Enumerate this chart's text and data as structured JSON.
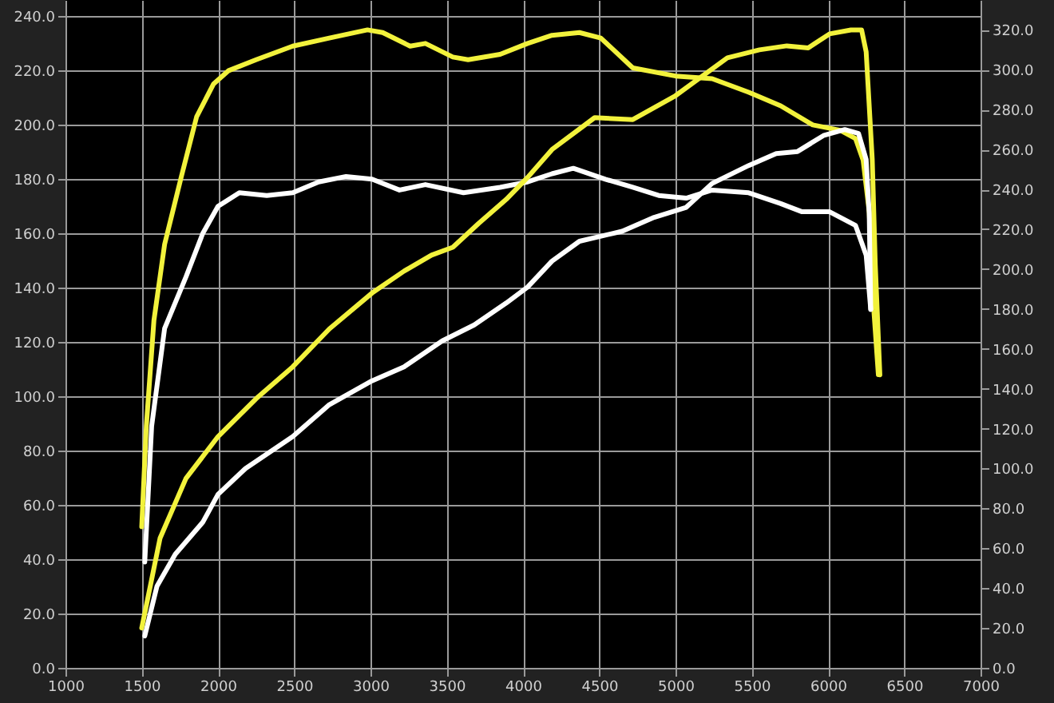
{
  "chart_data": {
    "type": "line",
    "xlim": [
      1000,
      7000
    ],
    "xticks": [
      1000,
      1500,
      2000,
      2500,
      3000,
      3500,
      4000,
      4500,
      5000,
      5500,
      6000,
      6500,
      7000
    ],
    "ylim": [
      0,
      246
    ],
    "yticks": [
      {
        "value": 0,
        "label": "0.0"
      },
      {
        "value": 20,
        "label": "20.0"
      },
      {
        "value": 40,
        "label": "40.0"
      },
      {
        "value": 60,
        "label": "60.0"
      },
      {
        "value": 80,
        "label": "80.0"
      },
      {
        "value": 100,
        "label": "100.0"
      },
      {
        "value": 120,
        "label": "120.0"
      },
      {
        "value": 140,
        "label": "140.0"
      },
      {
        "value": 160,
        "label": "160.0"
      },
      {
        "value": 180,
        "label": "180.0"
      },
      {
        "value": 200,
        "label": "200.0"
      },
      {
        "value": 220,
        "label": "220.0"
      },
      {
        "value": 240,
        "label": "240.0"
      }
    ],
    "y2lim": [
      0,
      335
    ],
    "y2ticks": [
      {
        "value": 0,
        "label": "0.0"
      },
      {
        "value": 20,
        "label": "20.0"
      },
      {
        "value": 40,
        "label": "40.0"
      },
      {
        "value": 60,
        "label": "60.0"
      },
      {
        "value": 80,
        "label": "80.0"
      },
      {
        "value": 100,
        "label": "100.0"
      },
      {
        "value": 120,
        "label": "120.0"
      },
      {
        "value": 140,
        "label": "140.0"
      },
      {
        "value": 160,
        "label": "160.0"
      },
      {
        "value": 180,
        "label": "180.0"
      },
      {
        "value": 200,
        "label": "200.0"
      },
      {
        "value": 220,
        "label": "220.0"
      },
      {
        "value": 240,
        "label": "240.0"
      },
      {
        "value": 260,
        "label": "260.0"
      },
      {
        "value": 280,
        "label": "280.0"
      },
      {
        "value": 300,
        "label": "300.0"
      },
      {
        "value": 320,
        "label": "320.0"
      }
    ],
    "grid": true,
    "series": [
      {
        "color": "#f2f23c",
        "x": [
          1500,
          1530,
          1580,
          1650,
          1760,
          1860,
          1970,
          2070,
          2250,
          2490,
          2730,
          2980,
          3080,
          3260,
          3360,
          3540,
          3640,
          3850,
          4030,
          4190,
          4370,
          4510,
          4720,
          5000,
          5240,
          5480,
          5690,
          5900,
          6080,
          6180,
          6230,
          6270,
          6300,
          6330
        ],
        "values": [
          52,
          89,
          128,
          156,
          181,
          203,
          215,
          220,
          224,
          229,
          232,
          235,
          234,
          229,
          230,
          225,
          224,
          226,
          230,
          233,
          234,
          232,
          221,
          218,
          217,
          212,
          207,
          200,
          198,
          195,
          187,
          168,
          132,
          108
        ]
      },
      {
        "color": "#ffffff",
        "x": [
          1520,
          1565,
          1650,
          1790,
          1900,
          2000,
          2140,
          2320,
          2490,
          2660,
          2840,
          3010,
          3190,
          3360,
          3610,
          3850,
          4030,
          4190,
          4330,
          4540,
          4720,
          4890,
          5070,
          5240,
          5480,
          5690,
          5830,
          6010,
          6180,
          6250,
          6280
        ],
        "values": [
          39,
          89,
          125,
          144,
          160,
          170,
          175,
          174,
          175,
          179,
          181,
          180,
          176,
          178,
          175,
          177,
          179,
          182,
          184,
          180,
          177,
          174,
          173,
          176,
          175,
          171,
          168,
          168,
          163,
          152,
          132
        ]
      },
      {
        "color": "#f2f23c",
        "axis": "y2",
        "x": [
          1500,
          1620,
          1790,
          2000,
          2250,
          2490,
          2730,
          3010,
          3220,
          3400,
          3540,
          3710,
          3890,
          4030,
          4190,
          4470,
          4720,
          5000,
          5340,
          5550,
          5730,
          5870,
          6010,
          6150,
          6220,
          6250,
          6290,
          6310,
          6340
        ],
        "values": [
          20,
          65,
          95,
          116,
          135,
          151,
          170,
          188,
          199,
          207,
          211,
          223,
          235,
          246,
          260,
          276,
          275,
          287,
          306,
          310,
          312,
          311,
          318,
          320,
          320,
          309,
          255,
          202,
          147
        ]
      },
      {
        "color": "#ffffff",
        "axis": "y2",
        "x": [
          1520,
          1600,
          1720,
          1900,
          2000,
          2180,
          2490,
          2730,
          3010,
          3220,
          3470,
          3680,
          3890,
          4030,
          4190,
          4370,
          4650,
          4860,
          5070,
          5240,
          5480,
          5660,
          5800,
          5970,
          6110,
          6200,
          6250,
          6270,
          6280
        ],
        "values": [
          16,
          41,
          57,
          73,
          87,
          100,
          116,
          132,
          144,
          151,
          164,
          172,
          183,
          191,
          204,
          214,
          219,
          226,
          231,
          243,
          252,
          258,
          259,
          267,
          270,
          268,
          255,
          228,
          180
        ]
      }
    ]
  }
}
